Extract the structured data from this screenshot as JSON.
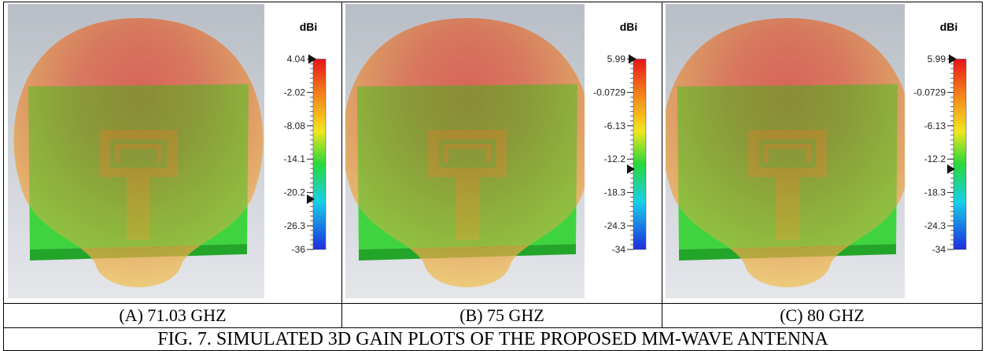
{
  "panels": [
    {
      "unit": "dBi",
      "scale_labels": [
        "4.04",
        "-2.02",
        "-8.08",
        "-14.1",
        "-20.2",
        "-26.3",
        "-36"
      ],
      "caption": "(A) 71.03 GHZ"
    },
    {
      "unit": "dBi",
      "scale_labels": [
        "5.99",
        "-0.0729",
        "-6.13",
        "-12.2",
        "-18.3",
        "-24.3",
        "-34"
      ],
      "caption": "(B) 75 GHZ"
    },
    {
      "unit": "dBi",
      "scale_labels": [
        "5.99",
        "-0.0729",
        "-6.13",
        "-12.2",
        "-18.3",
        "-24.3",
        "-34"
      ],
      "caption": "(C) 80 GHZ"
    }
  ],
  "figure_caption": "FIG. 7. SIMULATED 3D GAIN PLOTS OF THE PROPOSED MM-WAVE ANTENNA"
}
